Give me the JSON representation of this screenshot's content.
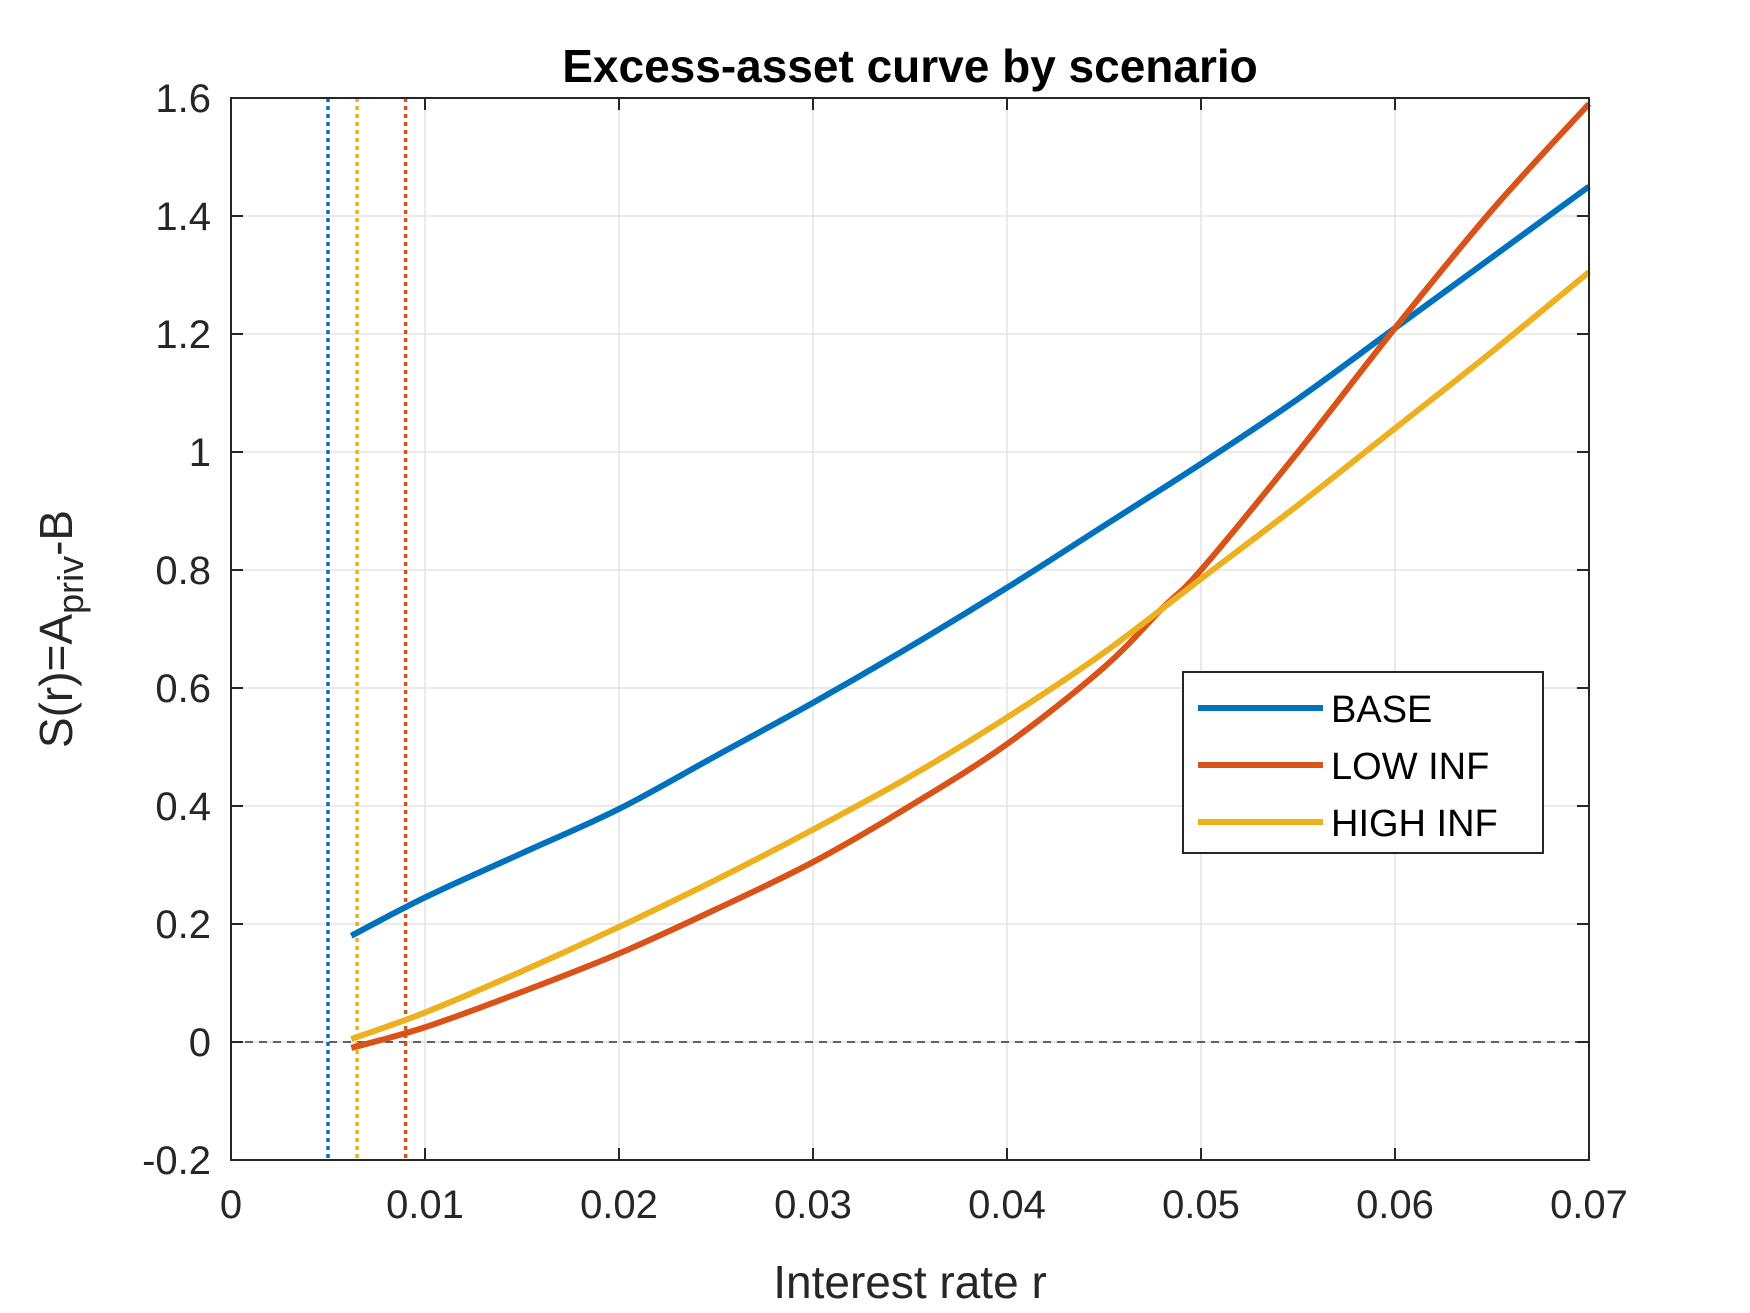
{
  "chart_data": {
    "type": "line",
    "title": "Excess-asset curve by scenario",
    "xlabel": "Interest rate r",
    "ylabel": {
      "main": "S(r)=A",
      "subscript": "priv",
      "suffix": "-B"
    },
    "xlim": [
      0,
      0.07
    ],
    "ylim": [
      -0.2,
      1.6
    ],
    "xticks": [
      0,
      0.01,
      0.02,
      0.03,
      0.04,
      0.05,
      0.06,
      0.07
    ],
    "xtick_labels": [
      "0",
      "0.01",
      "0.02",
      "0.03",
      "0.04",
      "0.05",
      "0.06",
      "0.07"
    ],
    "yticks": [
      -0.2,
      0,
      0.2,
      0.4,
      0.6,
      0.8,
      1,
      1.2,
      1.4,
      1.6
    ],
    "ytick_labels": [
      "-0.2",
      "0",
      "0.2",
      "0.4",
      "0.6",
      "0.8",
      "1",
      "1.2",
      "1.4",
      "1.6"
    ],
    "grid": true,
    "legend_position": "right-middle",
    "zero_line": {
      "y": 0,
      "style": "dashed",
      "color": "#4d4d4d"
    },
    "series": [
      {
        "name": "BASE",
        "color": "#0072BD",
        "x": [
          0.0062,
          0.01,
          0.015,
          0.02,
          0.025,
          0.03,
          0.035,
          0.04,
          0.045,
          0.05,
          0.055,
          0.06,
          0.065,
          0.07
        ],
        "y": [
          0.18,
          0.245,
          0.32,
          0.395,
          0.485,
          0.575,
          0.67,
          0.77,
          0.875,
          0.98,
          1.09,
          1.21,
          1.33,
          1.45
        ]
      },
      {
        "name": "LOW INF",
        "color": "#D95319",
        "x": [
          0.0062,
          0.01,
          0.015,
          0.02,
          0.025,
          0.03,
          0.035,
          0.04,
          0.045,
          0.048,
          0.05,
          0.055,
          0.06,
          0.065,
          0.07
        ],
        "y": [
          -0.01,
          0.025,
          0.085,
          0.15,
          0.225,
          0.305,
          0.4,
          0.505,
          0.635,
          0.735,
          0.8,
          1.0,
          1.21,
          1.41,
          1.59
        ]
      },
      {
        "name": "HIGH INF",
        "color": "#EDB120",
        "x": [
          0.0062,
          0.01,
          0.015,
          0.02,
          0.025,
          0.03,
          0.035,
          0.04,
          0.045,
          0.05,
          0.055,
          0.06,
          0.065,
          0.07
        ],
        "y": [
          0.005,
          0.05,
          0.12,
          0.195,
          0.275,
          0.36,
          0.45,
          0.55,
          0.66,
          0.785,
          0.91,
          1.04,
          1.17,
          1.305
        ]
      }
    ],
    "vertical_markers": [
      {
        "x": 0.005,
        "color": "#0072BD",
        "style": "dotted"
      },
      {
        "x": 0.0065,
        "color": "#EDB120",
        "style": "dotted"
      },
      {
        "x": 0.009,
        "color": "#D95319",
        "style": "dotted"
      }
    ]
  }
}
